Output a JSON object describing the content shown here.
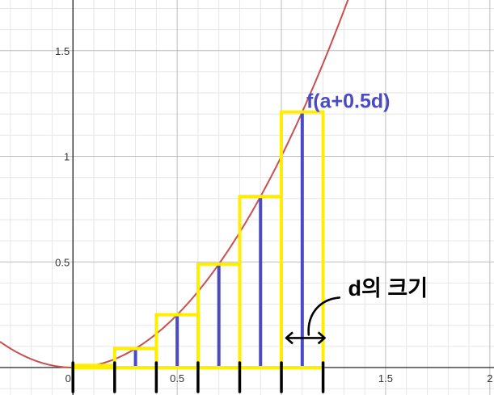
{
  "chart_data": {
    "type": "line",
    "function": {
      "expression": "x^2",
      "color": "#c9504d",
      "x_range": [
        -0.35,
        1.35
      ]
    },
    "xlim": [
      -0.35,
      2.02
    ],
    "ylim": [
      -0.13,
      1.74
    ],
    "x_ticks": [
      {
        "value": 0,
        "label": "0"
      },
      {
        "value": 0.5,
        "label": "0.5"
      },
      {
        "value": 1,
        "label": ""
      },
      {
        "value": 1.5,
        "label": "1.5"
      },
      {
        "value": 2,
        "label": "2"
      }
    ],
    "y_ticks": [
      {
        "value": 0.5,
        "label": "0.5"
      },
      {
        "value": 1,
        "label": "1"
      },
      {
        "value": 1.5,
        "label": "1.5"
      }
    ],
    "grid": true,
    "rectangles": {
      "width": 0.2,
      "color": "#ffee00",
      "items": [
        {
          "x_start": 0.0,
          "height": 0.01
        },
        {
          "x_start": 0.2,
          "height": 0.09
        },
        {
          "x_start": 0.4,
          "height": 0.25
        },
        {
          "x_start": 0.6,
          "height": 0.49
        },
        {
          "x_start": 0.8,
          "height": 0.81
        },
        {
          "x_start": 1.0,
          "height": 1.21
        }
      ]
    },
    "sample_lines": {
      "color": "#4a4ac4",
      "items": [
        {
          "x": 0.3,
          "y": 0.09
        },
        {
          "x": 0.5,
          "y": 0.25
        },
        {
          "x": 0.7,
          "y": 0.49
        },
        {
          "x": 0.9,
          "y": 0.81
        },
        {
          "x": 1.1,
          "y": 1.21
        }
      ]
    },
    "partition_marks": [
      0.0,
      0.2,
      0.4,
      0.6,
      0.8,
      1.0,
      1.2
    ],
    "annotations": {
      "function_label": "f(a+0.5d)",
      "function_label_color": "#4a4ac4",
      "width_label": "d의 크기",
      "width_arrow_from": 1.0,
      "width_arrow_to": 1.2
    }
  }
}
